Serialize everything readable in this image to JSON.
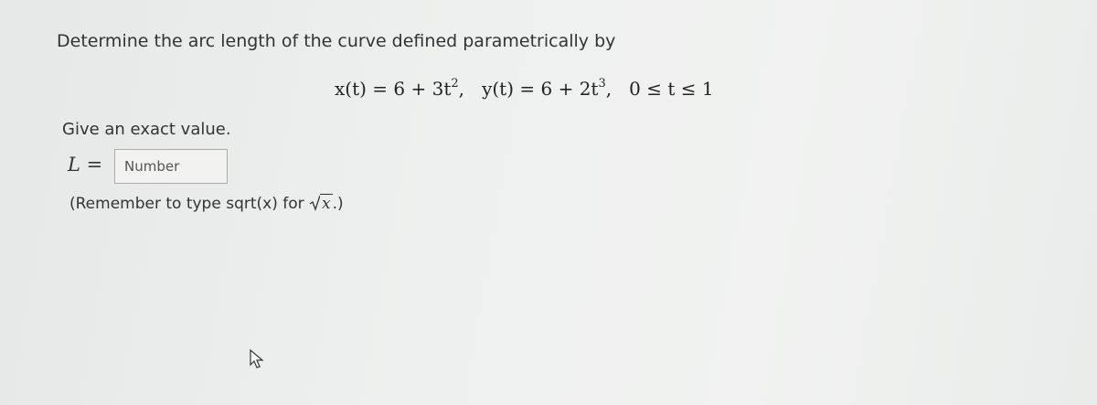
{
  "question": {
    "prompt": "Determine the arc length of the curve defined parametrically by",
    "equation": [
      {
        "text": "x(t) = 6 + 3t"
      },
      {
        "text": "2",
        "sup": true
      },
      {
        "text": ",   "
      },
      {
        "text": "y(t) = 6 + 2t"
      },
      {
        "text": "3",
        "sup": true
      },
      {
        "text": ",   "
      },
      {
        "text": "0 ≤ t ≤ 1"
      }
    ],
    "instruction": "Give an exact value.",
    "answer": {
      "label": "L =",
      "placeholder": "Number"
    },
    "hint": {
      "before": "(Remember to type sqrt(x) for ",
      "radicand": "x",
      "after": ".)"
    }
  }
}
